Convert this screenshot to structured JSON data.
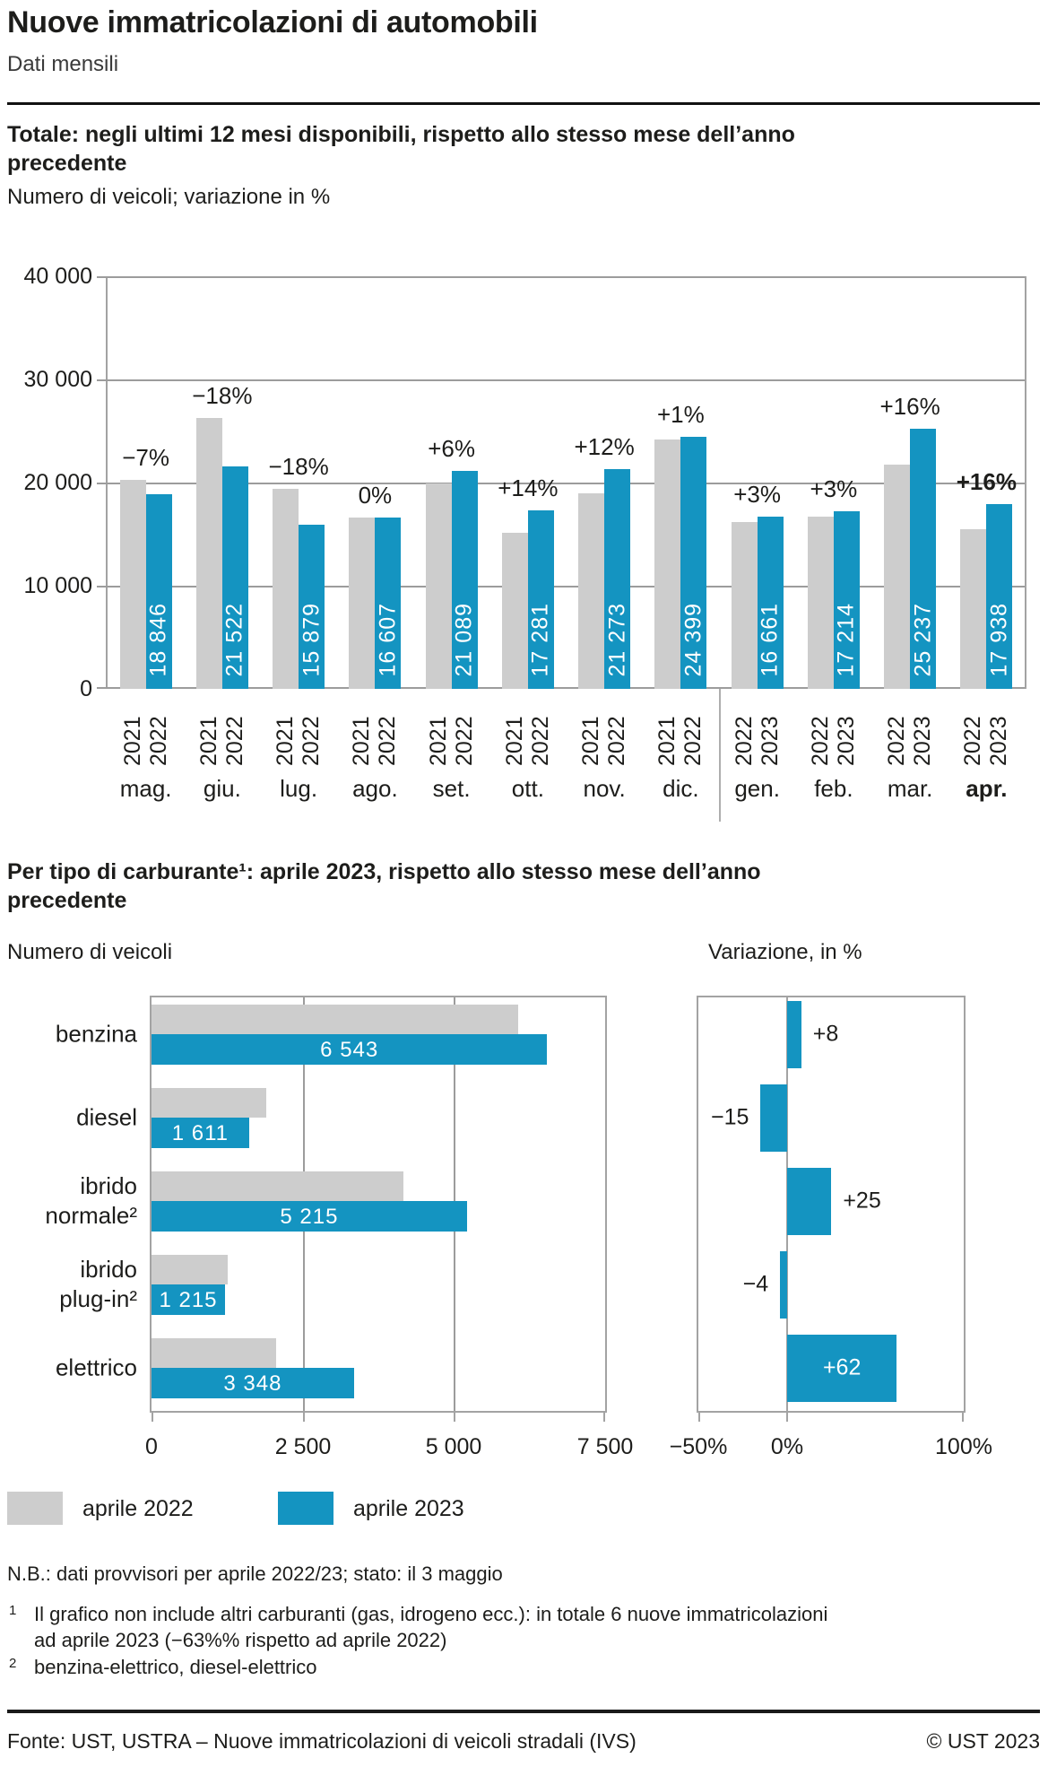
{
  "page": {
    "title": "Nuove immatricolazioni di automobili",
    "subtitle": "Dati mensili"
  },
  "colors": {
    "blue": "#1494c1",
    "gray": "#cdcdcd",
    "grid": "#9c9c9c"
  },
  "chart1": {
    "heading": "Totale: negli ultimi 12 mesi disponibili, rispetto allo stesso mese dell’anno\nprecedente",
    "axis_note": "Numero di veicoli; variazione in %",
    "y_ticks": [
      "40 000",
      "30 000",
      "20 000",
      "10 000",
      "0"
    ],
    "y_max": 40000,
    "months": [
      {
        "month": "mag.",
        "years": [
          "2021",
          "2022"
        ],
        "pct_label": "−7%",
        "value": 18846,
        "prev_value": 20264,
        "value_label": "18 846",
        "bold": false
      },
      {
        "month": "giu.",
        "years": [
          "2021",
          "2022"
        ],
        "pct_label": "−18%",
        "value": 21522,
        "prev_value": 26246,
        "value_label": "21 522",
        "bold": false
      },
      {
        "month": "lug.",
        "years": [
          "2021",
          "2022"
        ],
        "pct_label": "−18%",
        "value": 15879,
        "prev_value": 19365,
        "value_label": "15 879",
        "bold": false
      },
      {
        "month": "ago.",
        "years": [
          "2021",
          "2022"
        ],
        "pct_label": "0%",
        "value": 16607,
        "prev_value": 16607,
        "value_label": "16 607",
        "bold": false
      },
      {
        "month": "set.",
        "years": [
          "2021",
          "2022"
        ],
        "pct_label": "+6%",
        "value": 21089,
        "prev_value": 19895,
        "value_label": "21 089",
        "bold": false
      },
      {
        "month": "ott.",
        "years": [
          "2021",
          "2022"
        ],
        "pct_label": "+14%",
        "value": 17281,
        "prev_value": 15159,
        "value_label": "17 281",
        "bold": false
      },
      {
        "month": "nov.",
        "years": [
          "2021",
          "2022"
        ],
        "pct_label": "+12%",
        "value": 21273,
        "prev_value": 18994,
        "value_label": "21 273",
        "bold": false
      },
      {
        "month": "dic.",
        "years": [
          "2021",
          "2022"
        ],
        "pct_label": "+1%",
        "value": 24399,
        "prev_value": 24157,
        "value_label": "24 399",
        "bold": false
      },
      {
        "month": "gen.",
        "years": [
          "2022",
          "2023"
        ],
        "pct_label": "+3%",
        "value": 16661,
        "prev_value": 16175,
        "value_label": "16 661",
        "bold": false
      },
      {
        "month": "feb.",
        "years": [
          "2022",
          "2023"
        ],
        "pct_label": "+3%",
        "value": 17214,
        "prev_value": 16713,
        "value_label": "17 214",
        "bold": false
      },
      {
        "month": "mar.",
        "years": [
          "2022",
          "2023"
        ],
        "pct_label": "+16%",
        "value": 25237,
        "prev_value": 21756,
        "value_label": "25 237",
        "bold": false
      },
      {
        "month": "apr.",
        "years": [
          "2022",
          "2023"
        ],
        "pct_label": "+16%",
        "value": 17938,
        "prev_value": 15464,
        "value_label": "17 938",
        "bold": true
      }
    ]
  },
  "chart2": {
    "heading": "Per tipo di carburante¹: aprile 2023, rispetto allo stesso mese dell’anno\nprecedente",
    "left_label": "Numero di veicoli",
    "right_label": "Variazione, in %",
    "x_ticks_left": [
      "0",
      "2 500",
      "5 000",
      "7 500"
    ],
    "x_max_left": 7500,
    "x_ticks_right": [
      "−50%",
      "0%",
      "100%"
    ],
    "right_min": -50,
    "right_max": 100,
    "rows": [
      {
        "label_lines": [
          "benzina"
        ],
        "value": 6543,
        "value_label": "6 543",
        "prev_value": 6058,
        "pct": 8,
        "pct_label": "+8",
        "pct_inside": false
      },
      {
        "label_lines": [
          "diesel"
        ],
        "value": 1611,
        "value_label": "1 611",
        "prev_value": 1895,
        "pct": -15,
        "pct_label": "−15",
        "pct_inside": false
      },
      {
        "label_lines": [
          "ibrido",
          "normale²"
        ],
        "value": 5215,
        "value_label": "5 215",
        "prev_value": 4172,
        "pct": 25,
        "pct_label": "+25",
        "pct_inside": false
      },
      {
        "label_lines": [
          "ibrido",
          "plug-in²"
        ],
        "value": 1215,
        "value_label": "1 215",
        "prev_value": 1266,
        "pct": -4,
        "pct_label": "−4",
        "pct_inside": false
      },
      {
        "label_lines": [
          "elettrico"
        ],
        "value": 3348,
        "value_label": "3 348",
        "prev_value": 2067,
        "pct": 62,
        "pct_label": "+62",
        "pct_inside": true
      }
    ]
  },
  "legend": {
    "items": [
      {
        "label": "aprile 2022",
        "color": "#cdcdcd"
      },
      {
        "label": "aprile 2023",
        "color": "#1494c1"
      }
    ]
  },
  "notes": {
    "nb": "N.B.: dati provvisori per aprile 2022/23; stato: il 3 maggio",
    "footnotes": [
      {
        "marker": "1",
        "text": "Il grafico non include altri carburanti (gas, idrogeno ecc.): in totale 6 nuove immatricolazioni\nad aprile 2023 (−63%% rispetto ad aprile 2022)"
      },
      {
        "marker": "2",
        "text": "benzina-elettrico, diesel-elettrico"
      }
    ]
  },
  "footer": {
    "source": "Fonte: UST, USTRA – Nuove immatricolazioni di veicoli stradali (IVS)",
    "copyright": "© UST 2023"
  },
  "chart_data": [
    {
      "type": "bar",
      "title": "Totale: negli ultimi 12 mesi disponibili, rispetto allo stesso mese dell’anno precedente",
      "ylabel": "Numero di veicoli; variazione in %",
      "ylim": [
        0,
        40000
      ],
      "grid": true,
      "categories": [
        "mag.",
        "giu.",
        "lug.",
        "ago.",
        "set.",
        "ott.",
        "nov.",
        "dic.",
        "gen.",
        "feb.",
        "mar.",
        "apr."
      ],
      "series": [
        {
          "name": "stesso mese anno precedente (2021/2022)",
          "values": [
            20264,
            26246,
            19365,
            16607,
            19895,
            15159,
            18994,
            24157,
            16175,
            16713,
            21756,
            15464
          ]
        },
        {
          "name": "ultimi 12 mesi (2022/2023)",
          "values": [
            18846,
            21522,
            15879,
            16607,
            21089,
            17281,
            21273,
            24399,
            16661,
            17214,
            25237,
            17938
          ]
        }
      ],
      "change_pct": [
        -7,
        -18,
        -18,
        0,
        6,
        14,
        12,
        1,
        3,
        3,
        16,
        16
      ]
    },
    {
      "type": "bar",
      "orientation": "horizontal",
      "title": "Per tipo di carburante: aprile 2023 – Numero di veicoli",
      "xlim": [
        0,
        7500
      ],
      "categories": [
        "benzina",
        "diesel",
        "ibrido normale",
        "ibrido plug-in",
        "elettrico"
      ],
      "series": [
        {
          "name": "aprile 2022",
          "values": [
            6058,
            1895,
            4172,
            1266,
            2067
          ]
        },
        {
          "name": "aprile 2023",
          "values": [
            6543,
            1611,
            5215,
            1215,
            3348
          ]
        }
      ]
    },
    {
      "type": "bar",
      "orientation": "horizontal",
      "title": "Per tipo di carburante: aprile 2023 – Variazione, in %",
      "xlim": [
        -50,
        100
      ],
      "categories": [
        "benzina",
        "diesel",
        "ibrido normale",
        "ibrido plug-in",
        "elettrico"
      ],
      "values": [
        8,
        -15,
        25,
        -4,
        62
      ]
    }
  ]
}
